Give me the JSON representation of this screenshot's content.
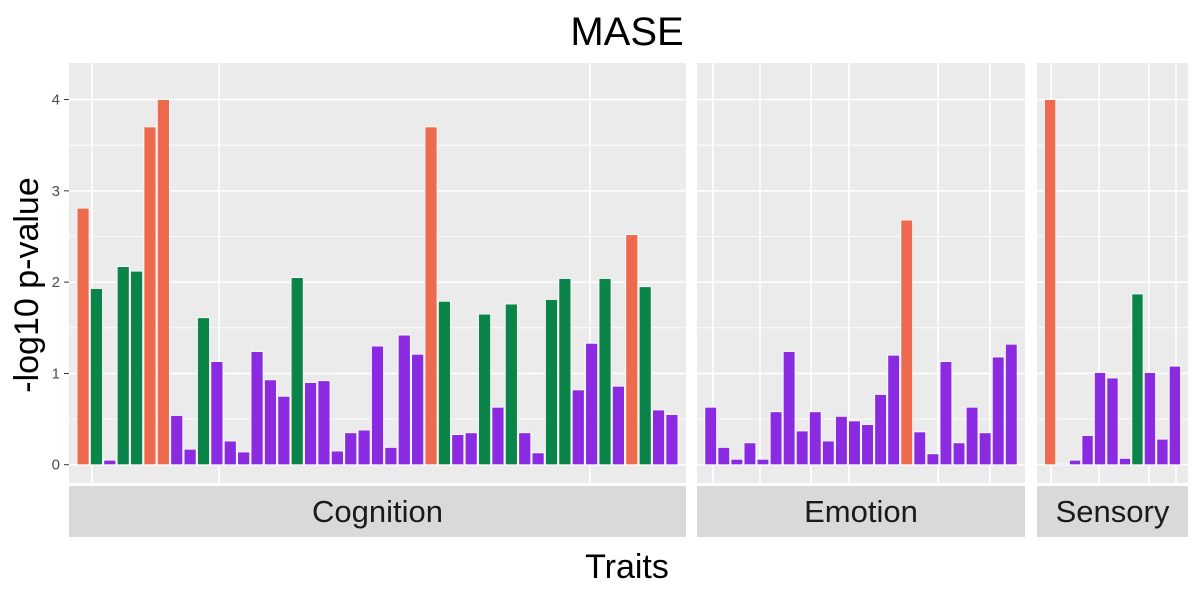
{
  "chart_data": {
    "type": "bar",
    "title": "MASE",
    "xlabel": "Traits",
    "ylabel": "-log10 p-value",
    "ylim": [
      -0.2,
      4.4
    ],
    "yticks": [
      0,
      1,
      2,
      3,
      4
    ],
    "grid": true,
    "legend": "none",
    "colors": {
      "orange": "#ed6a4f",
      "green": "#0a8448",
      "purple": "#8a2be2"
    },
    "facets": [
      {
        "name": "Cognition",
        "bars": [
          {
            "v": 2.81,
            "c": "orange"
          },
          {
            "v": 1.93,
            "c": "green"
          },
          {
            "v": 0.05,
            "c": "purple"
          },
          {
            "v": 2.17,
            "c": "green"
          },
          {
            "v": 2.12,
            "c": "green"
          },
          {
            "v": 3.7,
            "c": "orange"
          },
          {
            "v": 4.0,
            "c": "orange"
          },
          {
            "v": 0.54,
            "c": "purple"
          },
          {
            "v": 0.17,
            "c": "purple"
          },
          {
            "v": 1.61,
            "c": "green"
          },
          {
            "v": 1.13,
            "c": "purple"
          },
          {
            "v": 0.26,
            "c": "purple"
          },
          {
            "v": 0.14,
            "c": "purple"
          },
          {
            "v": 1.24,
            "c": "purple"
          },
          {
            "v": 0.93,
            "c": "purple"
          },
          {
            "v": 0.75,
            "c": "purple"
          },
          {
            "v": 2.05,
            "c": "green"
          },
          {
            "v": 0.9,
            "c": "purple"
          },
          {
            "v": 0.92,
            "c": "purple"
          },
          {
            "v": 0.15,
            "c": "purple"
          },
          {
            "v": 0.35,
            "c": "purple"
          },
          {
            "v": 0.38,
            "c": "purple"
          },
          {
            "v": 1.3,
            "c": "purple"
          },
          {
            "v": 0.19,
            "c": "purple"
          },
          {
            "v": 1.42,
            "c": "purple"
          },
          {
            "v": 1.21,
            "c": "purple"
          },
          {
            "v": 3.7,
            "c": "orange"
          },
          {
            "v": 1.79,
            "c": "green"
          },
          {
            "v": 0.33,
            "c": "purple"
          },
          {
            "v": 0.35,
            "c": "purple"
          },
          {
            "v": 1.65,
            "c": "green"
          },
          {
            "v": 0.63,
            "c": "purple"
          },
          {
            "v": 1.76,
            "c": "green"
          },
          {
            "v": 0.35,
            "c": "purple"
          },
          {
            "v": 0.13,
            "c": "purple"
          },
          {
            "v": 1.81,
            "c": "green"
          },
          {
            "v": 2.04,
            "c": "green"
          },
          {
            "v": 0.82,
            "c": "purple"
          },
          {
            "v": 1.33,
            "c": "purple"
          },
          {
            "v": 2.04,
            "c": "green"
          },
          {
            "v": 0.86,
            "c": "purple"
          },
          {
            "v": 2.52,
            "c": "orange"
          },
          {
            "v": 1.95,
            "c": "green"
          },
          {
            "v": 0.6,
            "c": "purple"
          },
          {
            "v": 0.55,
            "c": "purple"
          }
        ]
      },
      {
        "name": "Emotion",
        "bars": [
          {
            "v": 0.63,
            "c": "purple"
          },
          {
            "v": 0.19,
            "c": "purple"
          },
          {
            "v": 0.06,
            "c": "purple"
          },
          {
            "v": 0.24,
            "c": "purple"
          },
          {
            "v": 0.06,
            "c": "purple"
          },
          {
            "v": 0.58,
            "c": "purple"
          },
          {
            "v": 1.24,
            "c": "purple"
          },
          {
            "v": 0.37,
            "c": "purple"
          },
          {
            "v": 0.58,
            "c": "purple"
          },
          {
            "v": 0.26,
            "c": "purple"
          },
          {
            "v": 0.53,
            "c": "purple"
          },
          {
            "v": 0.48,
            "c": "purple"
          },
          {
            "v": 0.44,
            "c": "purple"
          },
          {
            "v": 0.77,
            "c": "purple"
          },
          {
            "v": 1.2,
            "c": "purple"
          },
          {
            "v": 2.68,
            "c": "orange"
          },
          {
            "v": 0.36,
            "c": "purple"
          },
          {
            "v": 0.12,
            "c": "purple"
          },
          {
            "v": 1.13,
            "c": "purple"
          },
          {
            "v": 0.24,
            "c": "purple"
          },
          {
            "v": 0.63,
            "c": "purple"
          },
          {
            "v": 0.35,
            "c": "purple"
          },
          {
            "v": 1.18,
            "c": "purple"
          },
          {
            "v": 1.32,
            "c": "purple"
          }
        ]
      },
      {
        "name": "Sensory",
        "bars": [
          {
            "v": 4.0,
            "c": "orange"
          },
          {
            "v": 0.01,
            "c": "purple"
          },
          {
            "v": 0.05,
            "c": "purple"
          },
          {
            "v": 0.32,
            "c": "purple"
          },
          {
            "v": 1.01,
            "c": "purple"
          },
          {
            "v": 0.95,
            "c": "purple"
          },
          {
            "v": 0.07,
            "c": "purple"
          },
          {
            "v": 1.87,
            "c": "green"
          },
          {
            "v": 1.01,
            "c": "purple"
          },
          {
            "v": 0.28,
            "c": "purple"
          },
          {
            "v": 1.08,
            "c": "purple"
          }
        ]
      }
    ]
  }
}
